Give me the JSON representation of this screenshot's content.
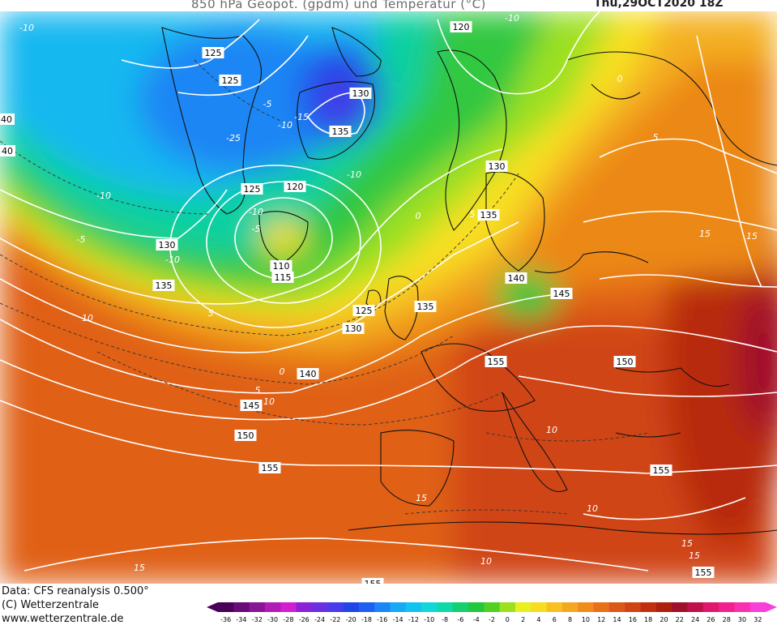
{
  "header": {
    "title": "850 hPa Geopot. (gpdm) und Temperatur (°C)",
    "datetime": "Thu,29OCT2020 18Z"
  },
  "footer": {
    "data_source": "Data: CFS reanalysis 0.500°",
    "copyright": "(C) Wetterzentrale",
    "website": "www.wetterzentrale.de"
  },
  "map": {
    "geopotential_labels": [
      "125",
      "125",
      "120",
      "130",
      "135",
      "130",
      "135",
      "125",
      "120",
      "130",
      "135",
      "110",
      "115",
      "125",
      "130",
      "135",
      "140",
      "140",
      "145",
      "145",
      "150",
      "150",
      "155",
      "155",
      "155",
      "155",
      "155",
      "40",
      "40"
    ],
    "temperature_labels": [
      "-10",
      "-10",
      "-25",
      "-15",
      "-10",
      "-10",
      "-5",
      "-10",
      "-5",
      "-10",
      "0",
      "-5",
      "5",
      "10",
      "5",
      "0",
      "10",
      "15",
      "5",
      "10",
      "10",
      "15",
      "15",
      "15",
      "15",
      "0",
      "5",
      "-10",
      "15",
      "10"
    ]
  },
  "colorbar": {
    "ticks": [
      "-36",
      "-34",
      "-32",
      "-30",
      "-28",
      "-26",
      "-24",
      "-22",
      "-20",
      "-18",
      "-16",
      "-14",
      "-12",
      "-10",
      "-8",
      "-6",
      "-4",
      "-2",
      "0",
      "2",
      "4",
      "6",
      "8",
      "10",
      "12",
      "14",
      "16",
      "18",
      "20",
      "22",
      "24",
      "26",
      "28",
      "30",
      "32"
    ],
    "colors": [
      "#4a0058",
      "#6a0a7a",
      "#8a1496",
      "#b01cb4",
      "#d020d0",
      "#8a22d8",
      "#6a30e0",
      "#4a3ce8",
      "#2046e8",
      "#2060f0",
      "#1c86f4",
      "#18a8f4",
      "#14c2f0",
      "#10d8d8",
      "#10d8a8",
      "#14d070",
      "#20c83c",
      "#50d020",
      "#9ce020",
      "#e8f020",
      "#f8dc20",
      "#f8c020",
      "#f4a820",
      "#f08c1c",
      "#e87018",
      "#dc5818",
      "#d04414",
      "#c03010",
      "#ac200c",
      "#a0102c",
      "#c0104c",
      "#e0186c",
      "#f0208c",
      "#f830b0",
      "#f840d8"
    ]
  }
}
